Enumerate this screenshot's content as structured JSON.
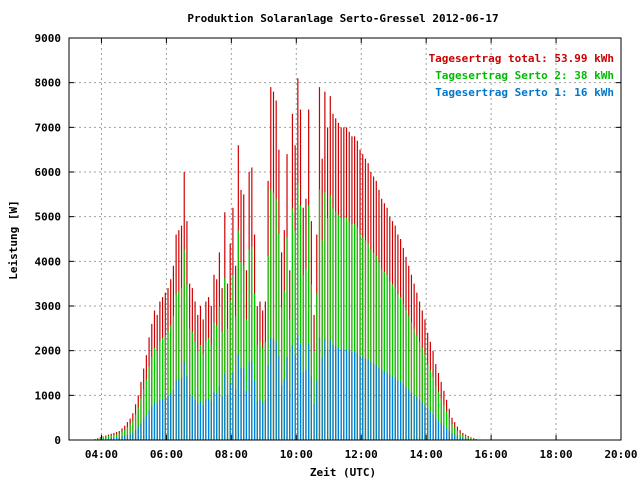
{
  "chart_data": {
    "type": "bar",
    "title": "Produktion Solaranlage Serto-Gressel 2012-06-17",
    "xlabel": "Zeit (UTC)",
    "ylabel": "Leistung [W]",
    "xlim": [
      3.0,
      20.0
    ],
    "ylim": [
      0,
      9000
    ],
    "grid": true,
    "legend_position": "top-right",
    "x_ticks": [
      {
        "x": 4,
        "label": "04:00"
      },
      {
        "x": 6,
        "label": "06:00"
      },
      {
        "x": 8,
        "label": "08:00"
      },
      {
        "x": 10,
        "label": "10:00"
      },
      {
        "x": 12,
        "label": "12:00"
      },
      {
        "x": 14,
        "label": "14:00"
      },
      {
        "x": 16,
        "label": "16:00"
      },
      {
        "x": 18,
        "label": "18:00"
      },
      {
        "x": 20,
        "label": "20:00"
      }
    ],
    "y_ticks": [
      {
        "y": 0,
        "label": "0"
      },
      {
        "y": 1000,
        "label": "1000"
      },
      {
        "y": 2000,
        "label": "2000"
      },
      {
        "y": 3000,
        "label": "3000"
      },
      {
        "y": 4000,
        "label": "4000"
      },
      {
        "y": 5000,
        "label": "5000"
      },
      {
        "y": 6000,
        "label": "6000"
      },
      {
        "y": 7000,
        "label": "7000"
      },
      {
        "y": 8000,
        "label": "8000"
      },
      {
        "y": 9000,
        "label": "9000"
      }
    ],
    "legend": [
      {
        "label": "Tagesertrag total: 53.99 kWh",
        "color": "#cc0000"
      },
      {
        "label": "Tagesertrag Serto 2: 38 kWh",
        "color": "#00bb00"
      },
      {
        "label": "Tagesertrag Serto 1: 16 kWh",
        "color": "#0077cc"
      }
    ],
    "series_colors": {
      "total": "#cc0000",
      "serto2": "#00cc00",
      "serto1": "#0080e0"
    },
    "x_start": 3.8,
    "x_step": 0.0833,
    "series": [
      {
        "name": "Tagesertrag total: 53.99 kWh",
        "key": "total",
        "values": [
          20,
          40,
          60,
          80,
          100,
          120,
          140,
          160,
          180,
          200,
          260,
          320,
          400,
          480,
          600,
          800,
          1000,
          1300,
          1600,
          1900,
          2300,
          2600,
          2900,
          2800,
          3100,
          3200,
          3300,
          3400,
          3600,
          3900,
          4600,
          4700,
          4800,
          6000,
          4900,
          3500,
          3400,
          3100,
          2800,
          3000,
          2700,
          3100,
          3200,
          3000,
          3700,
          3600,
          4200,
          3400,
          5100,
          3500,
          4400,
          5200,
          3900,
          6600,
          5600,
          5500,
          3800,
          6000,
          6100,
          4600,
          3000,
          3100,
          2900,
          3100,
          5800,
          7900,
          7800,
          7600,
          6500,
          4200,
          4700,
          6400,
          3800,
          7300,
          6600,
          8100,
          7400,
          5200,
          5400,
          7400,
          4900,
          2800,
          4600,
          7900,
          6300,
          7800,
          7000,
          7700,
          7300,
          7200,
          7100,
          7000,
          7000,
          7000,
          6900,
          6800,
          6800,
          6700,
          6500,
          6400,
          6300,
          6200,
          6000,
          5900,
          5800,
          5600,
          5400,
          5300,
          5200,
          5000,
          4900,
          4800,
          4600,
          4500,
          4300,
          4100,
          3900,
          3700,
          3500,
          3300,
          3100,
          2900,
          2700,
          2400,
          2200,
          2000,
          1700,
          1500,
          1300,
          1100,
          900,
          700,
          500,
          400,
          300,
          220,
          160,
          120,
          90,
          60,
          40,
          20,
          10
        ]
      },
      {
        "name": "Tagesertrag Serto 2: 38 kWh",
        "key": "serto2",
        "values": [
          15,
          30,
          45,
          60,
          75,
          90,
          100,
          110,
          125,
          140,
          180,
          230,
          290,
          350,
          430,
          570,
          720,
          930,
          1140,
          1350,
          1640,
          1850,
          2060,
          1990,
          2200,
          2280,
          2350,
          2420,
          2560,
          2780,
          3270,
          3340,
          3410,
          4260,
          3480,
          2490,
          2420,
          2200,
          1990,
          2130,
          1920,
          2200,
          2280,
          2130,
          2630,
          2560,
          2990,
          2420,
          3620,
          2490,
          3120,
          3690,
          2770,
          4690,
          3980,
          3900,
          2700,
          4260,
          4330,
          3270,
          2130,
          2200,
          2060,
          2200,
          4120,
          5610,
          5540,
          5400,
          4620,
          2980,
          3340,
          4540,
          2700,
          5180,
          4690,
          5750,
          5250,
          3690,
          3830,
          5250,
          3480,
          1990,
          3270,
          5610,
          4470,
          5540,
          4970,
          5470,
          5180,
          5110,
          5040,
          4970,
          4970,
          4970,
          4900,
          4830,
          4830,
          4760,
          4620,
          4540,
          4470,
          4400,
          4260,
          4190,
          4120,
          3980,
          3830,
          3760,
          3690,
          3550,
          3480,
          3410,
          3270,
          3200,
          3050,
          2910,
          2770,
          2630,
          2490,
          2340,
          2200,
          2060,
          1920,
          1700,
          1560,
          1420,
          1210,
          1070,
          920,
          780,
          640,
          500,
          360,
          280,
          210,
          160,
          110,
          85,
          65,
          45,
          30,
          15,
          7
        ]
      },
      {
        "name": "Tagesertrag Serto 1: 16 kWh",
        "key": "serto1",
        "values": [
          5,
          10,
          15,
          20,
          25,
          30,
          40,
          50,
          55,
          60,
          80,
          90,
          110,
          130,
          170,
          230,
          280,
          370,
          460,
          550,
          660,
          750,
          840,
          810,
          900,
          920,
          950,
          980,
          1040,
          1120,
          1330,
          1360,
          1390,
          1740,
          1420,
          1010,
          980,
          900,
          810,
          870,
          780,
          900,
          920,
          870,
          1070,
          1040,
          1210,
          980,
          1480,
          1010,
          1280,
          1510,
          1130,
          1910,
          1620,
          1600,
          1100,
          1740,
          1770,
          1330,
          870,
          900,
          840,
          900,
          1680,
          2290,
          2260,
          2200,
          1880,
          1220,
          1360,
          1860,
          1100,
          2120,
          1910,
          2350,
          2150,
          1510,
          1570,
          2150,
          1420,
          810,
          1330,
          2290,
          1830,
          2260,
          2030,
          2230,
          2120,
          2090,
          2060,
          2030,
          2030,
          2030,
          2000,
          1970,
          1970,
          1940,
          1880,
          1860,
          1830,
          1800,
          1740,
          1710,
          1680,
          1620,
          1570,
          1540,
          1510,
          1450,
          1420,
          1390,
          1330,
          1300,
          1250,
          1190,
          1130,
          1070,
          1010,
          960,
          900,
          840,
          780,
          700,
          640,
          580,
          490,
          430,
          380,
          320,
          260,
          200,
          140,
          120,
          90,
          60,
          50,
          35,
          25,
          15,
          10,
          5,
          3
        ]
      }
    ]
  }
}
